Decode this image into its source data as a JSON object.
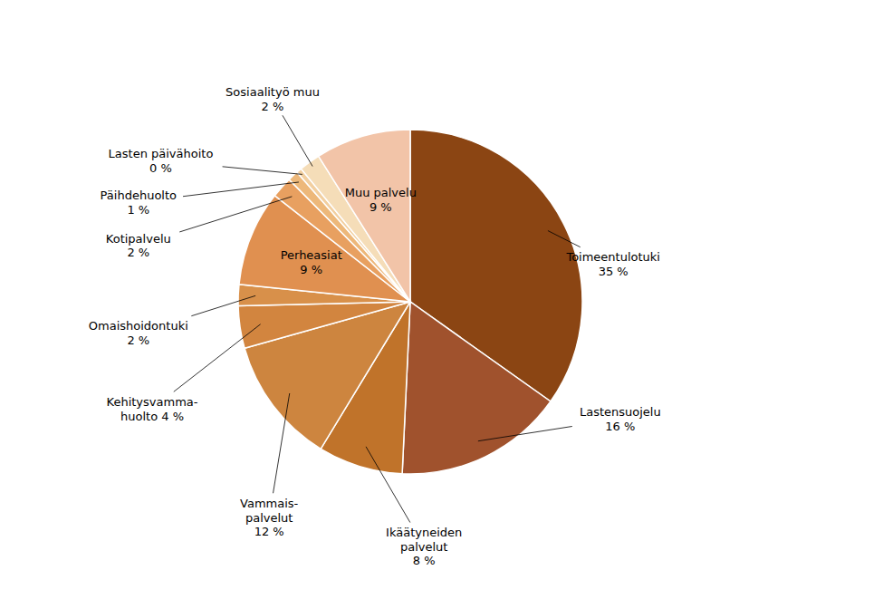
{
  "chart_data": {
    "type": "pie",
    "categories": [
      "Toimeentulotuki\n35 %",
      "Lastensuojelu\n16 %",
      "Ikäätyneiden\npalvelut\n8 %",
      "Vammais-\npalvelut\n12 %",
      "Kehitysvamma-\nhuolto 4 %",
      "Omaishoidontuki\n2 %",
      "Perheasiat\n9 %",
      "Kotipalvelu\n2 %",
      "Päihdehuolto\n1 %",
      "Lasten päivähoito\n0 %",
      "Sosiaalityö muu\n2 %",
      "Muu palvelu\n9 %"
    ],
    "values": [
      35,
      16,
      8,
      12,
      4,
      2,
      9,
      2,
      1,
      0.5,
      2,
      9
    ],
    "colors": [
      "#8B4513",
      "#A0522D",
      "#C0732A",
      "#CD853F",
      "#D2853F",
      "#D8904A",
      "#E09050",
      "#E8A060",
      "#EDB87A",
      "#F2CFA0",
      "#F5DDB8",
      "#F2C4A8"
    ]
  }
}
